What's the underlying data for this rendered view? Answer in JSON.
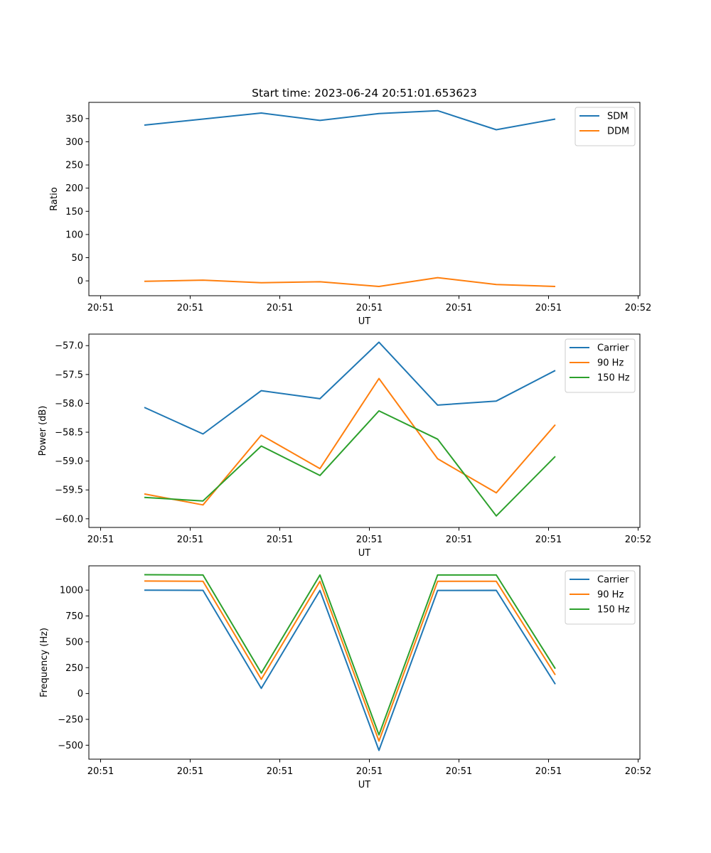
{
  "figure_title": "Start time: 2023-06-24 20:51:01.653623",
  "chart_data": [
    {
      "type": "line",
      "title": "Start time: 2023-06-24 20:51:01.653623",
      "xlabel": "UT",
      "ylabel": "Ratio",
      "x_tick_labels": [
        "20:51",
        "20:51",
        "20:51",
        "20:51",
        "20:51",
        "20:51",
        "20:52"
      ],
      "x_point_count": 8,
      "yticks": [
        0,
        50,
        100,
        150,
        200,
        250,
        300,
        350
      ],
      "ylim": [
        -32,
        385
      ],
      "grid": false,
      "legend_position": "top-right",
      "series": [
        {
          "name": "SDM",
          "color": "#1f77b4",
          "values": [
            336,
            349,
            362,
            346,
            361,
            367,
            326,
            349
          ]
        },
        {
          "name": "DDM",
          "color": "#ff7f0e",
          "values": [
            -1,
            1.5,
            -4,
            -2,
            -12,
            7,
            -8,
            -12
          ]
        }
      ]
    },
    {
      "type": "line",
      "xlabel": "UT",
      "ylabel": "Power (dB)",
      "x_tick_labels": [
        "20:51",
        "20:51",
        "20:51",
        "20:51",
        "20:51",
        "20:51",
        "20:52"
      ],
      "x_point_count": 8,
      "yticks": [
        -57.0,
        -57.5,
        -58.0,
        -58.5,
        -59.0,
        -59.5,
        -60.0
      ],
      "ytick_labels": [
        "−57.0",
        "−57.5",
        "−58.0",
        "−58.5",
        "−59.0",
        "−59.5",
        "−60.0"
      ],
      "ylim": [
        -60.15,
        -56.8
      ],
      "grid": false,
      "legend_position": "top-right",
      "series": [
        {
          "name": "Carrier",
          "color": "#1f77b4",
          "values": [
            -58.07,
            -58.53,
            -57.78,
            -57.92,
            -56.94,
            -58.03,
            -57.96,
            -57.43
          ]
        },
        {
          "name": "90 Hz",
          "color": "#ff7f0e",
          "values": [
            -59.57,
            -59.76,
            -58.55,
            -59.13,
            -57.57,
            -58.96,
            -59.55,
            -58.37
          ]
        },
        {
          "name": "150 Hz",
          "color": "#2ca02c",
          "values": [
            -59.63,
            -59.69,
            -58.74,
            -59.25,
            -58.13,
            -58.62,
            -59.95,
            -58.92
          ]
        }
      ]
    },
    {
      "type": "line",
      "xlabel": "UT",
      "ylabel": "Frequency (Hz)",
      "x_tick_labels": [
        "20:51",
        "20:51",
        "20:51",
        "20:51",
        "20:51",
        "20:51",
        "20:52"
      ],
      "x_point_count": 8,
      "yticks": [
        -500,
        -250,
        0,
        250,
        500,
        750,
        1000
      ],
      "ytick_labels": [
        "−500",
        "−250",
        "0",
        "250",
        "500",
        "750",
        "1000"
      ],
      "ylim": [
        -635,
        1235
      ],
      "grid": false,
      "legend_position": "top-right",
      "series": [
        {
          "name": "Carrier",
          "color": "#1f77b4",
          "values": [
            1000,
            998,
            50,
            997,
            -550,
            997,
            998,
            90
          ]
        },
        {
          "name": "90 Hz",
          "color": "#ff7f0e",
          "values": [
            1088,
            1086,
            138,
            1085,
            -460,
            1085,
            1085,
            180
          ]
        },
        {
          "name": "150 Hz",
          "color": "#2ca02c",
          "values": [
            1149,
            1146,
            198,
            1146,
            -400,
            1146,
            1146,
            240
          ]
        }
      ]
    }
  ]
}
